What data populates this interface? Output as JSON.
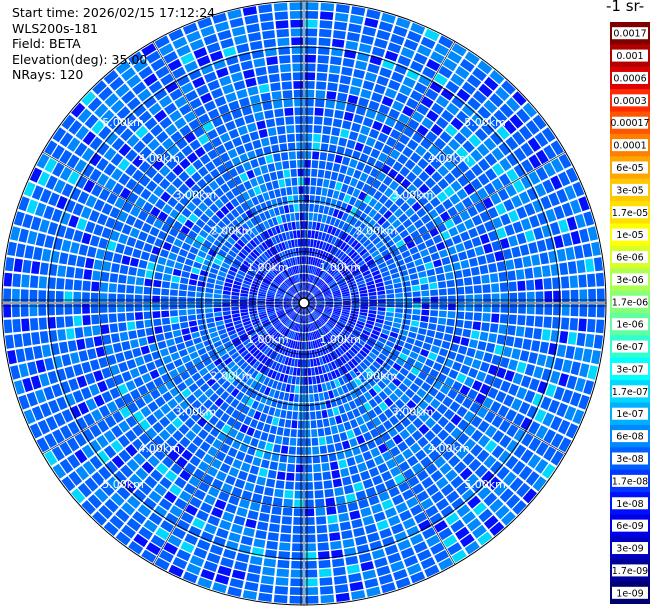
{
  "info": {
    "start_time": "Start time: 2026/02/15 17:12:24",
    "instrument": "WLS200s-181",
    "field": "Field: BETA",
    "elevation": "Elevation(deg): 35.00",
    "nrays": "NRays: 120"
  },
  "colorbar": {
    "unit_label": "-1 sr-",
    "labels": [
      "0.0017",
      "0.001",
      "0.0006",
      "0.0003",
      "0.00017",
      "0.0001",
      "6e-05",
      "3e-05",
      "1.7e-05",
      "1e-05",
      "6e-06",
      "3e-06",
      "1.7e-06",
      "1e-06",
      "6e-07",
      "3e-07",
      "1.7e-07",
      "1e-07",
      "6e-08",
      "3e-08",
      "1.7e-08",
      "1e-08",
      "6e-09",
      "3e-09",
      "1.7e-09",
      "1e-09"
    ],
    "colors": [
      "#800000",
      "#b00000",
      "#dd0000",
      "#ff2a00",
      "#ff5500",
      "#ff8000",
      "#ffa500",
      "#ffc800",
      "#ffe000",
      "#ffff00",
      "#d8ff28",
      "#b0ff50",
      "#88ff78",
      "#60ffa0",
      "#30ffcf",
      "#00ffff",
      "#00d8ff",
      "#00b0ff",
      "#0088ff",
      "#0060ff",
      "#0038ff",
      "#0010ff",
      "#0000e8",
      "#0000c0",
      "#000098",
      "#000070"
    ]
  },
  "chart_data": {
    "type": "heatmap",
    "projection": "polar PPI",
    "field": "BETA",
    "rays": 120,
    "elevation_deg": 35.0,
    "max_range_km": 5.9,
    "range_ring_labels": [
      "1.00km",
      "2.00km",
      "3.00km",
      "4.00km",
      "5.00km"
    ],
    "range_rings_km": [
      1,
      2,
      3,
      4,
      5
    ],
    "label_azimuths_deg": [
      315,
      45,
      225,
      135
    ],
    "value_range_log10": [
      -9,
      -2.77
    ],
    "dominant_colors": [
      "#0060ff",
      "#0088ff",
      "#0010ff",
      "#00d8ff"
    ]
  }
}
